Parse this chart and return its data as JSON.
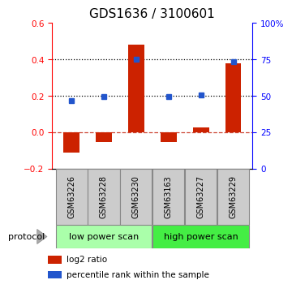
{
  "title": "GDS1636 / 3100601",
  "samples": [
    "GSM63226",
    "GSM63228",
    "GSM63230",
    "GSM63163",
    "GSM63227",
    "GSM63229"
  ],
  "log2_ratio": [
    -0.11,
    -0.055,
    0.48,
    -0.055,
    0.025,
    0.38
  ],
  "percentile_rank": [
    0.175,
    0.195,
    0.4,
    0.195,
    0.205,
    0.39
  ],
  "left_ylim": [
    -0.2,
    0.6
  ],
  "right_ylim": [
    0,
    100
  ],
  "left_yticks": [
    -0.2,
    0.0,
    0.2,
    0.4,
    0.6
  ],
  "right_yticks": [
    0,
    25,
    50,
    75,
    100
  ],
  "right_yticklabels": [
    "0",
    "25",
    "50",
    "75",
    "100%"
  ],
  "dotted_lines": [
    0.2,
    0.4
  ],
  "bar_color": "#cc2200",
  "dot_color": "#2255cc",
  "dashed_line_color": "#cc4433",
  "groups": [
    {
      "label": "low power scan",
      "start": 0,
      "end": 3,
      "color": "#aaffaa"
    },
    {
      "label": "high power scan",
      "start": 3,
      "end": 6,
      "color": "#44ee44"
    }
  ],
  "protocol_label": "protocol",
  "legend_items": [
    {
      "label": "log2 ratio",
      "color": "#cc2200"
    },
    {
      "label": "percentile rank within the sample",
      "color": "#2255cc"
    }
  ],
  "title_fontsize": 11,
  "tick_label_fontsize": 7.5,
  "bar_width": 0.5,
  "xlim": [
    -0.6,
    5.6
  ]
}
